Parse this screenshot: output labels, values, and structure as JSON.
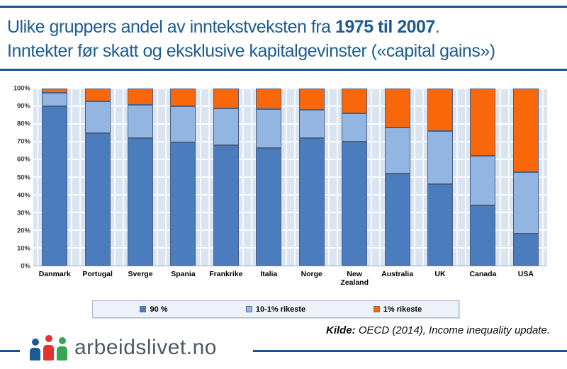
{
  "header": {
    "title_line1": {
      "prefix": "Ulike gruppers andel av inntekstveksten fra ",
      "bold": "1975 til 2007",
      "suffix": "."
    },
    "title_line2": "Inntekter før skatt og eksklusive kapitalgevinster («capital gains»)"
  },
  "chart_data": {
    "type": "bar",
    "stacked": true,
    "title": "",
    "xlabel": "",
    "ylabel": "",
    "ylim": [
      0,
      100
    ],
    "unit": "%",
    "grid": "horizontal-white-on-light-blue",
    "plot_bg_color": "#dbe5f1",
    "legend_position": "bottom",
    "y_ticks": [
      "0%",
      "10%",
      "20%",
      "30%",
      "40%",
      "50%",
      "60%",
      "70%",
      "80%",
      "90%",
      "100%"
    ],
    "categories": [
      "Danmark",
      "Portugal",
      "Sverge",
      "Spania",
      "Frankrike",
      "Italia",
      "Norge",
      "New Zealand",
      "Australia",
      "UK",
      "Canada",
      "USA"
    ],
    "series": [
      {
        "name": "90 %",
        "color": "#4a7cbe",
        "values": [
          90,
          75,
          72,
          69.5,
          68,
          66.5,
          72,
          70,
          52,
          46,
          34,
          18
        ]
      },
      {
        "name": "10-1% rikeste",
        "color": "#93b5e1",
        "values": [
          7.5,
          18,
          19,
          20.5,
          21,
          22,
          16,
          16,
          26,
          30,
          28,
          35
        ]
      },
      {
        "name": "1% rikeste",
        "color": "#f8680a",
        "values": [
          2.5,
          7,
          9,
          10,
          11,
          11.5,
          12,
          14,
          22,
          24,
          38,
          47
        ]
      }
    ]
  },
  "footer": {
    "source_label": "Kilde:",
    "source_text": " OECD (2014), Income inequality update.",
    "logo_text": "arbeidslivet.no"
  }
}
